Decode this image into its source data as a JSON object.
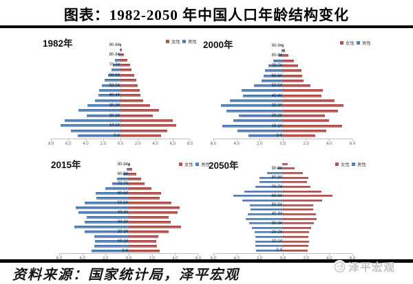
{
  "window": {
    "title": "图表：1982-2050 年中国人口年龄结构变化"
  },
  "footer": {
    "source": "资料来源：国家统计局，泽平宏观",
    "logo_text": "泽平宏观"
  },
  "legend": {
    "female": "女性",
    "male": "男性"
  },
  "colors": {
    "female": "#C0504D",
    "male": "#4F81BD",
    "axis": "#BFBFBF",
    "centerline": "#DCDCDC",
    "logo": "#C4C4C4"
  },
  "chart_data": [
    {
      "type": "bar",
      "variant": "population_pyramid",
      "title": "1982年",
      "xlabel": "",
      "ylabel": "",
      "xmax": 8,
      "x_ticks": [
        "8.0",
        "6.0",
        "4.0",
        "2.0",
        "0.0",
        "2.0",
        "4.0",
        "6.0",
        "8.0"
      ],
      "legend_entries": [
        {
          "label": "女性",
          "color": "#C0504D"
        },
        {
          "label": "男性",
          "color": "#4F81BD"
        }
      ],
      "categories": [
        "90-94",
        "85-89",
        "80-84",
        "75-79",
        "70-74",
        "65-69",
        "60-64",
        "55-59",
        "50-54",
        "45-49",
        "40-44",
        "35-39",
        "30-34",
        "25-29",
        "20-24",
        "15-19",
        "10-14",
        "5-9",
        "0-4"
      ],
      "series": [
        {
          "name": "男性",
          "side": "left",
          "values": [
            0.03,
            0.08,
            0.22,
            0.6,
            0.9,
            1.05,
            1.45,
            1.85,
            2.15,
            2.45,
            2.55,
            2.9,
            3.8,
            4.8,
            3.9,
            6.4,
            6.9,
            5.7,
            4.9
          ]
        },
        {
          "name": "女性",
          "side": "right",
          "values": [
            0.06,
            0.14,
            0.38,
            0.8,
            1.1,
            1.25,
            1.55,
            1.85,
            2.0,
            2.2,
            2.3,
            2.6,
            3.4,
            4.4,
            3.7,
            6.0,
            6.4,
            5.4,
            4.7
          ]
        }
      ]
    },
    {
      "type": "bar",
      "variant": "population_pyramid",
      "title": "2000年",
      "xlabel": "",
      "ylabel": "",
      "xmax": 6,
      "x_ticks": [
        "6.0",
        "4.0",
        "2.0",
        "0.0",
        "2.0",
        "4.0",
        "6.0"
      ],
      "legend_entries": [
        {
          "label": "女性",
          "color": "#C0504D"
        },
        {
          "label": "男性",
          "color": "#4F81BD"
        }
      ],
      "categories": [
        "90-94",
        "85-89",
        "80-84",
        "75-79",
        "70-74",
        "65-69",
        "60-64",
        "55-59",
        "50-54",
        "45-49",
        "40-44",
        "35-39",
        "30-34",
        "25-29",
        "20-24",
        "15-19",
        "10-14",
        "5-9",
        "0-4"
      ],
      "series": [
        {
          "name": "男性",
          "side": "left",
          "values": [
            0.03,
            0.1,
            0.35,
            0.85,
            1.25,
            1.55,
            1.65,
            1.85,
            2.5,
            3.55,
            3.45,
            4.55,
            5.35,
            4.85,
            3.8,
            4.25,
            5.25,
            3.9,
            3.0
          ]
        },
        {
          "name": "女性",
          "side": "right",
          "values": [
            0.07,
            0.2,
            0.5,
            0.95,
            1.3,
            1.6,
            1.65,
            1.8,
            2.4,
            3.45,
            3.35,
            4.45,
            5.2,
            4.75,
            3.65,
            4.0,
            5.1,
            3.75,
            2.8
          ]
        }
      ]
    },
    {
      "type": "bar",
      "variant": "population_pyramid",
      "title": "2015年",
      "xlabel": "",
      "ylabel": "",
      "xmax": 6,
      "x_ticks": [
        "6.0",
        "4.0",
        "2.0",
        "0.0",
        "2.0",
        "4.0",
        "6.0"
      ],
      "legend_entries": [
        {
          "label": "女性",
          "color": "#C0504D"
        },
        {
          "label": "男性",
          "color": "#4F81BD"
        }
      ],
      "categories": [
        "90-94",
        "85-89",
        "80-84",
        "75-79",
        "70-74",
        "65-69",
        "60-64",
        "55-59",
        "50-54",
        "45-49",
        "40-44",
        "35-39",
        "30-34",
        "25-29",
        "20-24",
        "15-19",
        "10-14",
        "5-9",
        "0-4"
      ],
      "series": [
        {
          "name": "男性",
          "side": "left",
          "values": [
            0.04,
            0.15,
            0.5,
            1.0,
            1.4,
            2.0,
            2.85,
            2.8,
            3.8,
            4.6,
            4.35,
            3.65,
            3.8,
            4.7,
            3.8,
            3.0,
            2.9,
            3.0,
            3.2
          ]
        },
        {
          "name": "女性",
          "side": "right",
          "values": [
            0.1,
            0.3,
            0.65,
            1.05,
            1.35,
            1.95,
            2.8,
            2.7,
            3.7,
            4.4,
            4.2,
            3.45,
            3.6,
            4.5,
            3.45,
            2.55,
            2.4,
            2.45,
            2.7
          ]
        }
      ]
    },
    {
      "type": "bar",
      "variant": "population_pyramid",
      "title": "2050年",
      "xlabel": "",
      "ylabel": "",
      "xmax": 6,
      "x_ticks": [
        "6.0",
        "4.0",
        "2.0",
        "0.0",
        "2.0",
        "4.0",
        "6.0"
      ],
      "legend_entries": [
        {
          "label": "女性",
          "color": "#C0504D"
        },
        {
          "label": "男性",
          "color": "#4F81BD"
        }
      ],
      "categories": [
        "95-99",
        "90-94",
        "85-89",
        "80-84",
        "75-79",
        "70-74",
        "65-69",
        "60-64",
        "55-59",
        "50-54",
        "45-49",
        "40-44",
        "35-39",
        "30-34",
        "25-29",
        "20-24",
        "15-19",
        "10-14",
        "5-9",
        "0-4"
      ],
      "series": [
        {
          "name": "男性",
          "side": "left",
          "values": [
            0.05,
            0.5,
            1.35,
            2.0,
            2.0,
            2.4,
            3.3,
            4.3,
            3.5,
            2.85,
            2.8,
            3.05,
            3.2,
            2.9,
            2.7,
            2.45,
            2.35,
            2.35,
            2.35,
            2.3
          ]
        },
        {
          "name": "女性",
          "side": "right",
          "values": [
            0.4,
            1.0,
            1.7,
            2.2,
            2.1,
            2.4,
            3.3,
            4.3,
            3.4,
            2.6,
            2.6,
            2.85,
            2.9,
            2.7,
            2.45,
            2.25,
            2.2,
            2.25,
            2.2,
            2.15
          ]
        }
      ]
    }
  ]
}
